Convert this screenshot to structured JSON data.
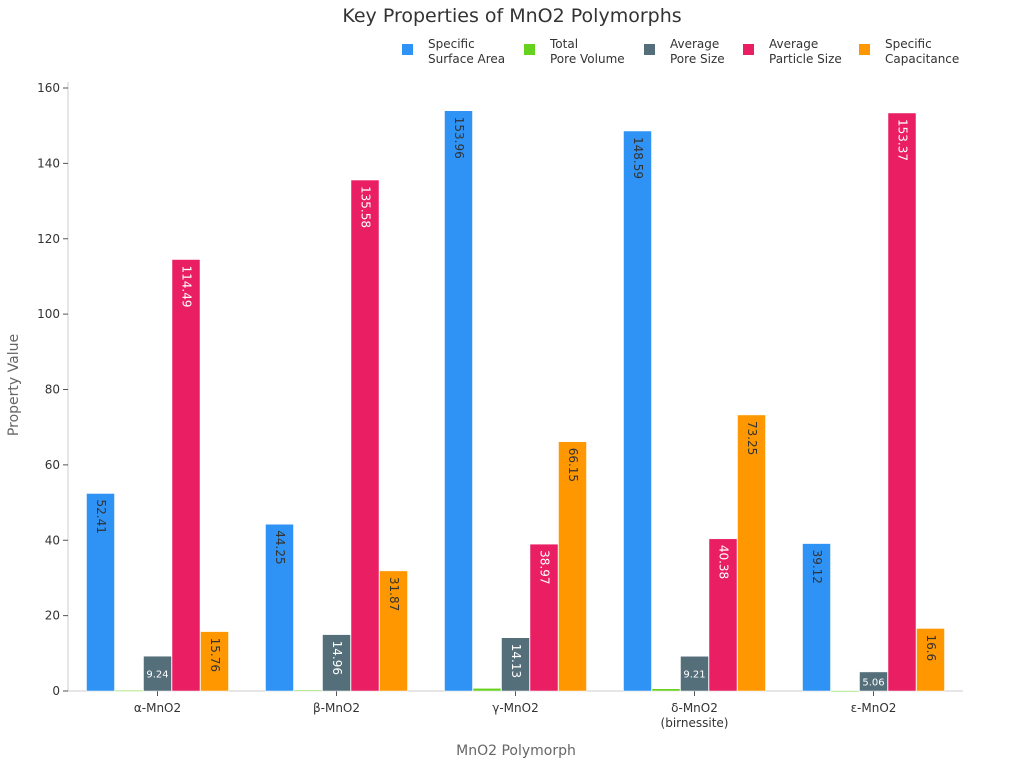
{
  "chart_data": {
    "type": "bar",
    "title": "Key Properties of MnO2 Polymorphs",
    "xlabel": "MnO2 Polymorph",
    "ylabel": "Property Value",
    "ylim": [
      0,
      160
    ],
    "yticks": [
      0,
      20,
      40,
      60,
      80,
      100,
      120,
      140,
      160
    ],
    "categories": [
      [
        "α-MnO2"
      ],
      [
        "β-MnO2"
      ],
      [
        "γ-MnO2"
      ],
      [
        "δ-MnO2",
        "(birnessite)"
      ],
      [
        "ε-MnO2"
      ]
    ],
    "legend_placement": "top-right",
    "series": [
      {
        "name": [
          "Specific",
          "Surface Area"
        ],
        "color": "#2e93f5",
        "label_color": "#333333",
        "values": [
          52.41,
          44.25,
          153.96,
          148.59,
          39.12
        ],
        "show_labels": true
      },
      {
        "name": [
          "Total",
          "Pore Volume"
        ],
        "color": "#66d11f",
        "label_color": "#333333",
        "values": [
          0.15,
          0.25,
          0.7,
          0.6,
          0.1
        ],
        "show_labels": false
      },
      {
        "name": [
          "Average",
          "Pore Size"
        ],
        "color": "#546e7a",
        "label_color": "#ffffff",
        "values": [
          9.24,
          14.96,
          14.13,
          9.21,
          5.06
        ],
        "show_labels": true
      },
      {
        "name": [
          "Average",
          "Particle Size"
        ],
        "color": "#e91e63",
        "label_color": "#ffffff",
        "values": [
          114.49,
          135.58,
          38.97,
          40.38,
          153.37
        ],
        "show_labels": true
      },
      {
        "name": [
          "Specific",
          "Capacitance"
        ],
        "color": "#ff9800",
        "label_color": "#333333",
        "values": [
          15.76,
          31.87,
          66.15,
          73.25,
          16.6
        ],
        "show_labels": true
      }
    ]
  }
}
